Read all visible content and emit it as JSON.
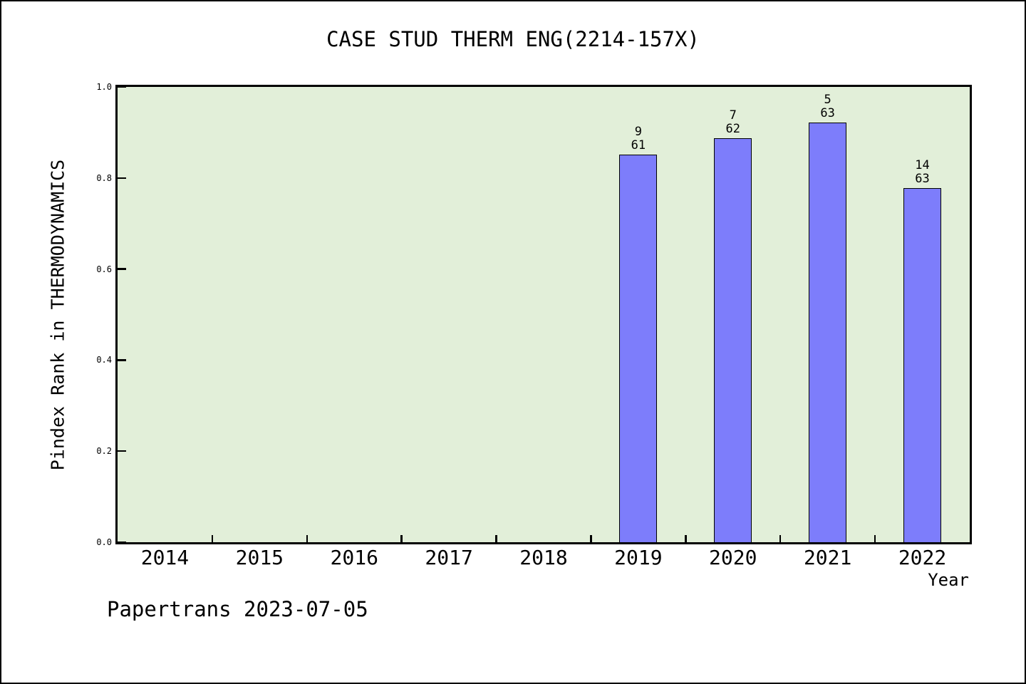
{
  "title": "CASE STUD THERM ENG(2214-157X)",
  "footer": "Papertrans 2023-07-05",
  "chart_data": {
    "type": "bar",
    "title": "CASE STUD THERM ENG(2214-157X)",
    "xlabel": "Year",
    "ylabel": "Pindex Rank in THERMODYNAMICS",
    "categories": [
      "2014",
      "2015",
      "2016",
      "2017",
      "2018",
      "2019",
      "2020",
      "2021",
      "2022"
    ],
    "values": [
      null,
      null,
      null,
      null,
      null,
      0.852,
      0.887,
      0.921,
      0.778
    ],
    "bars": [
      {
        "category": "2019",
        "value": 0.852,
        "label_top": "9",
        "label_bottom": "61"
      },
      {
        "category": "2020",
        "value": 0.887,
        "label_top": "7",
        "label_bottom": "62"
      },
      {
        "category": "2021",
        "value": 0.921,
        "label_top": "5",
        "label_bottom": "63"
      },
      {
        "category": "2022",
        "value": 0.778,
        "label_top": "14",
        "label_bottom": "63"
      }
    ],
    "ylim": [
      0.0,
      1.0
    ],
    "ytick_labels": [
      "0.0",
      "0.2",
      "0.4",
      "0.6",
      "0.8",
      "1.0"
    ],
    "ytick_values": [
      0.0,
      0.2,
      0.4,
      0.6,
      0.8,
      1.0
    ],
    "grid": false,
    "legend": null,
    "colors": {
      "bar_fill": "#7d7dfb",
      "bar_edge": "#000000",
      "plot_bg": "#e2efd9",
      "frame": "#000000",
      "text": "#000000",
      "page_bg": "#ffffff"
    }
  }
}
